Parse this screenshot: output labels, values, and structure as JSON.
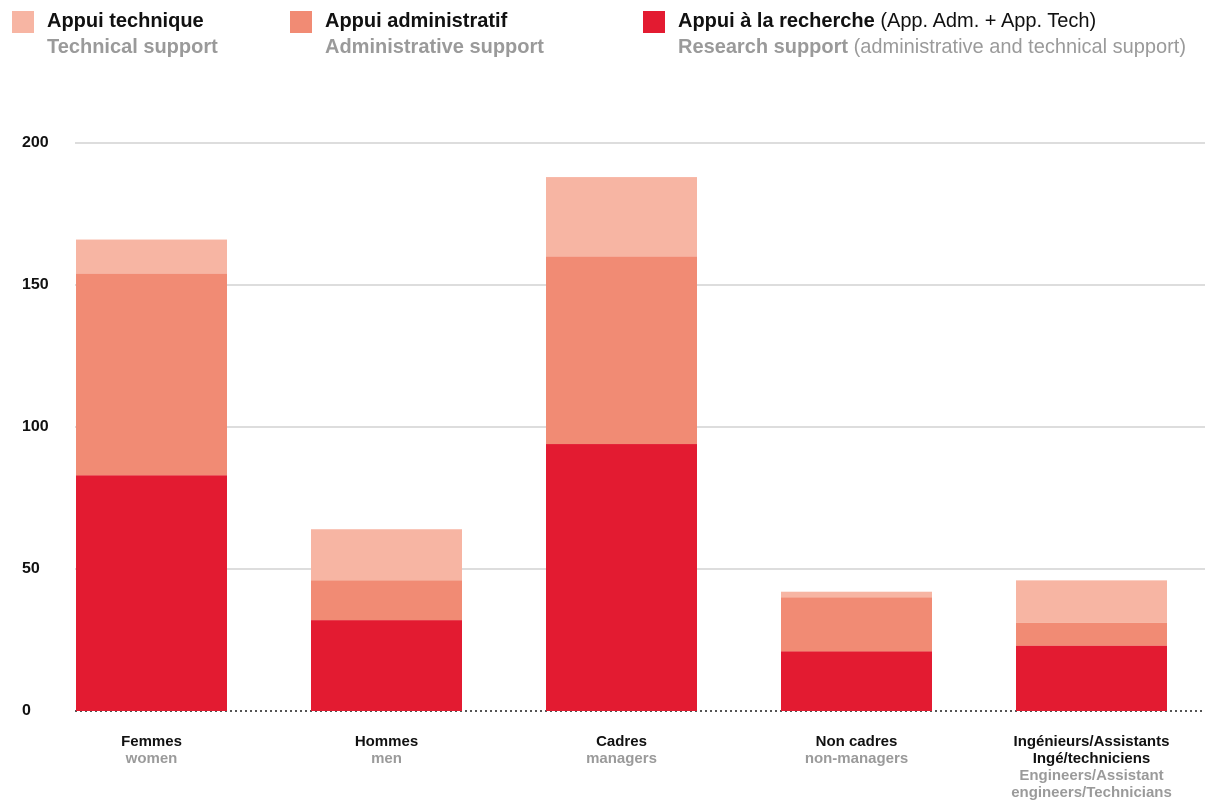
{
  "chart_data": {
    "type": "stacked_bar",
    "categories": [
      "Femmes",
      "Hommes",
      "Cadres",
      "Non cadres",
      "Ingénieurs/Assistants Ingé/techniciens"
    ],
    "categories_en": [
      "women",
      "men",
      "managers",
      "non-managers",
      "Engineers/Assistant engineers/Technicians"
    ],
    "series": [
      {
        "name": "Appui technique",
        "name_en": "Technical support",
        "color": "#f7b5a3",
        "values": [
          12,
          18,
          28,
          2,
          15
        ]
      },
      {
        "name": "Appui administratif",
        "name_en": "Administrative support",
        "color": "#f18b74",
        "values": [
          71,
          14,
          66,
          19,
          8
        ]
      },
      {
        "name": "Appui à la recherche",
        "name_detail": "(App. Adm. + App. Tech)",
        "name_en": "Research support",
        "name_en_detail": "(administrative and technical support)",
        "color": "#e31b31",
        "values": [
          83,
          32,
          94,
          21,
          23
        ]
      }
    ],
    "ylim": [
      0,
      200
    ],
    "yticks": [
      0,
      50,
      100,
      150,
      200
    ],
    "grid": true
  }
}
